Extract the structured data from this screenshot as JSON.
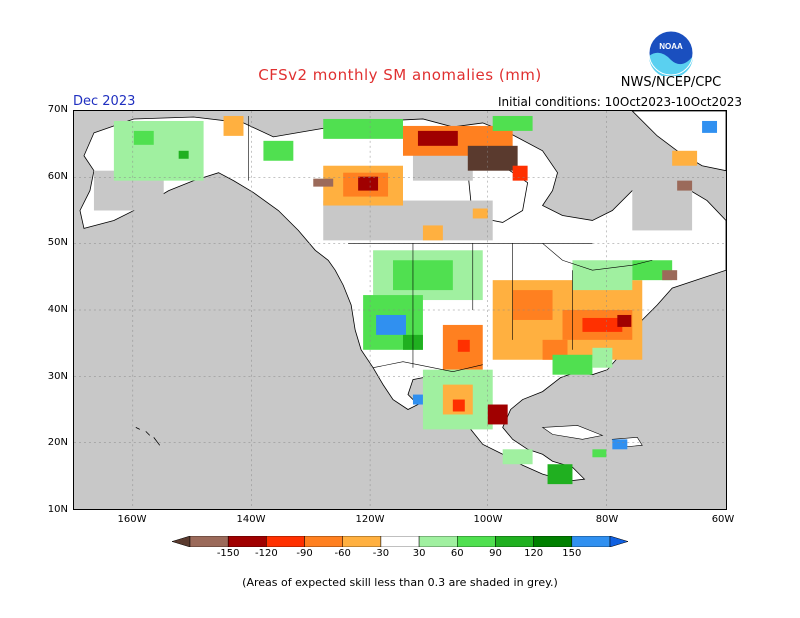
{
  "title": "CFSv2 monthly SM anomalies (mm)",
  "month": "Dec 2023",
  "initial_conditions": "Initial conditions: 10Oct2023-10Oct2023",
  "agency": "NWS/NCEP/CPC",
  "logo_text": "NOAA",
  "lat_labels": [
    "70N",
    "60N",
    "50N",
    "40N",
    "30N",
    "20N",
    "10N"
  ],
  "lon_labels": [
    "160W",
    "140W",
    "120W",
    "100W",
    "80W",
    "60W"
  ],
  "colorbar": {
    "labels": [
      "-150",
      "-120",
      "-90",
      "-60",
      "-30",
      "30",
      "60",
      "90",
      "120",
      "150"
    ],
    "colors": [
      "#5a3a2e",
      "#9b6a5a",
      "#a00000",
      "#ff3000",
      "#ff8020",
      "#ffb040",
      "#ffffff",
      "#a0f0a0",
      "#50e050",
      "#20b020",
      "#008000",
      "#3090f0",
      "#1060e0"
    ]
  },
  "footnote": "(Areas of expected skill less than 0.3 are shaded in grey.)",
  "colors": {
    "ocean": "#c8c8c8",
    "land_nodata": "#ffffff",
    "skill_grey": "#c8c8c8",
    "title_red": "#e03030",
    "month_blue": "#2030c0"
  }
}
